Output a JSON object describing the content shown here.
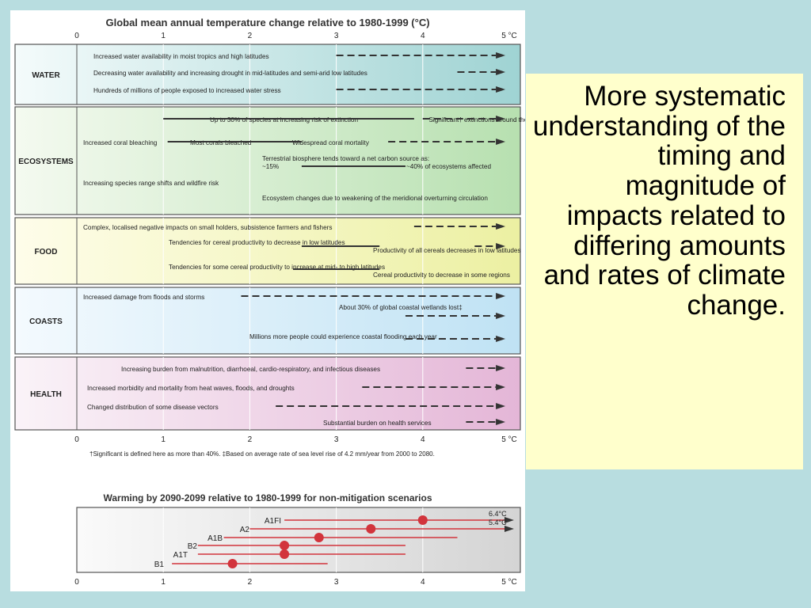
{
  "figure": {
    "title": "Global mean annual temperature change relative to 1980-1999 (°C)",
    "axis_ticks": [
      "0",
      "1",
      "2",
      "3",
      "4",
      "5 °C"
    ],
    "sections": [
      {
        "label": "WATER",
        "items": [
          {
            "text": "Increased water availability in moist tropics and high latitudes",
            "solid": null,
            "dash": [
              3.0,
              4.9
            ]
          },
          {
            "text": "Decreasing water availability and increasing drought in mid-latitudes and semi-arid low latitudes",
            "solid": null,
            "dash": [
              4.4,
              4.9
            ]
          },
          {
            "text": "Hundreds of millions of people exposed to increased water stress",
            "solid": null,
            "dash": [
              3.0,
              4.9
            ]
          }
        ]
      },
      {
        "label": "ECOSYSTEMS",
        "items": [
          {
            "text": "Up to 30% of species at increasing risk of extinction",
            "text2": "Significant† extinctions around the globe",
            "solid": [
              1.0,
              3.9
            ],
            "dash": [
              4.0,
              4.9
            ]
          },
          {
            "text": "Increased coral bleaching",
            "text2": "Most corals bleached",
            "text3": "Widespread coral mortality",
            "solid": [
              1.05,
              2.6
            ],
            "dash": [
              3.6,
              4.9
            ]
          },
          {
            "text": "Terrestrial biosphere tends toward a net carbon source as:",
            "text2": "~15%",
            "text3": "~40% of ecosystems affected",
            "solid": [
              2.6,
              3.8
            ],
            "dash": null
          },
          {
            "text": "Increasing species range shifts and wildfire risk",
            "solid": null,
            "dash": null
          },
          {
            "text": "Ecosystem changes due to weakening of the meridional overturning circulation",
            "solid": null,
            "dash": null
          }
        ]
      },
      {
        "label": "FOOD",
        "items": [
          {
            "text": "Complex, localised negative impacts on small holders, subsistence farmers and fishers",
            "solid": null,
            "dash": [
              3.9,
              4.9
            ]
          },
          {
            "text": "Tendencies for cereal productivity to decrease in low latitudes",
            "text2": "Productivity of all cereals decreases in low latitudes",
            "solid": [
              2.6,
              3.5
            ],
            "dash": [
              4.6,
              4.9
            ]
          },
          {
            "text": "Tendencies for some cereal productivity to increase at mid- to high latitudes",
            "text2": "Cereal productivity to decrease in some regions",
            "solid": [
              2.5,
              3.5
            ],
            "dash": null
          }
        ]
      },
      {
        "label": "COASTS",
        "items": [
          {
            "text": "Increased damage from floods and storms",
            "solid": null,
            "dash": [
              1.9,
              4.9
            ]
          },
          {
            "text": "About 30% of global coastal wetlands lost‡",
            "solid": null,
            "dash": [
              3.8,
              4.9
            ]
          },
          {
            "text": "Millions more people could experience coastal flooding each year",
            "solid": null,
            "dash": [
              3.8,
              4.9
            ]
          }
        ]
      },
      {
        "label": "HEALTH",
        "items": [
          {
            "text": "Increasing burden from malnutrition, diarrhoeal, cardio-respiratory, and infectious diseases",
            "solid": null,
            "dash": [
              4.5,
              4.9
            ]
          },
          {
            "text": "Increased morbidity and mortality from heat waves, floods, and droughts",
            "solid": null,
            "dash": [
              3.3,
              4.9
            ]
          },
          {
            "text": "Changed distribution of some disease vectors",
            "solid": null,
            "dash": [
              2.3,
              4.9
            ]
          },
          {
            "text": "Substantial burden on health services",
            "solid": null,
            "dash": [
              4.5,
              4.9
            ]
          }
        ]
      }
    ],
    "footnote": "†Significant is defined here as more than 40%. ‡Based on average rate of sea level rise of 4.2 mm/year from 2000 to 2080.",
    "scenario_title": "Warming by 2090-2099 relative to 1980-1999 for non-mitigation scenarios",
    "scenario_labels_right": [
      "6.4°C",
      "5.4°C"
    ]
  },
  "chart_data": {
    "type": "scatter",
    "title": "Warming by 2090-2099 relative to 1980-1999 for non-mitigation scenarios",
    "xlabel": "",
    "ylabel": "",
    "xlim": [
      0,
      5
    ],
    "x_ticks": [
      "0",
      "1",
      "2",
      "3",
      "4",
      "5 °C"
    ],
    "series": [
      {
        "name": "A1FI",
        "best": 4.0,
        "range": [
          2.4,
          6.4
        ]
      },
      {
        "name": "A2",
        "best": 3.4,
        "range": [
          2.0,
          5.4
        ]
      },
      {
        "name": "A1B",
        "best": 2.8,
        "range": [
          1.7,
          4.4
        ]
      },
      {
        "name": "B2",
        "best": 2.4,
        "range": [
          1.4,
          3.8
        ]
      },
      {
        "name": "A1T",
        "best": 2.4,
        "range": [
          1.4,
          3.8
        ]
      },
      {
        "name": "B1",
        "best": 1.8,
        "range": [
          1.1,
          2.9
        ]
      }
    ],
    "colors": {
      "marker": "#d2343c"
    }
  },
  "note": {
    "text": "More systematic understanding of the timing and magnitude of impacts related to differing amounts and rates of climate change."
  }
}
